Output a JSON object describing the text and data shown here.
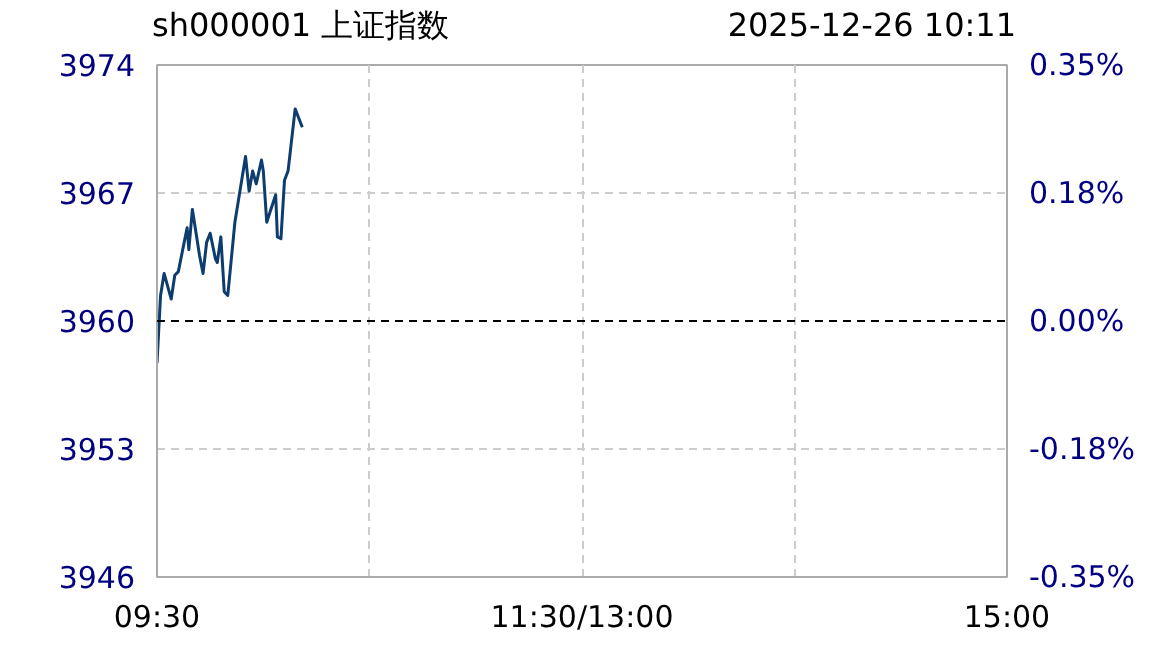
{
  "chart_data": {
    "type": "line",
    "title": "sh000001 上证指数",
    "subtitle": "2025-12-26  10:11",
    "x": [
      9.5,
      9.523,
      9.546,
      9.592,
      9.615,
      9.638,
      9.683,
      9.695,
      9.706,
      9.729,
      9.775,
      9.798,
      9.821,
      9.844,
      9.878,
      9.89,
      9.913,
      9.935,
      9.958,
      10.004,
      10.027,
      10.073,
      10.096,
      10.119,
      10.142,
      10.176,
      10.188,
      10.21,
      10.233,
      10.268,
      10.279,
      10.302,
      10.325,
      10.348,
      10.394,
      10.44
    ],
    "series": [
      {
        "color": "#0d3d6e",
        "values": [
          3957.7,
          3961.4,
          3962.6,
          3961.2,
          3962.5,
          3962.7,
          3964.6,
          3965.1,
          3963.9,
          3966.1,
          3963.6,
          3962.6,
          3964.3,
          3964.8,
          3963.4,
          3963.2,
          3964.6,
          3961.6,
          3961.4,
          3965.4,
          3966.6,
          3969.0,
          3967.1,
          3968.2,
          3967.5,
          3968.8,
          3968.2,
          3965.4,
          3966.0,
          3966.9,
          3964.6,
          3964.5,
          3967.7,
          3968.2,
          3971.6,
          3970.6
        ]
      }
    ],
    "xlim": [
      9.5,
      15
    ],
    "xticks": [
      {
        "value": 9.5,
        "label": "09:30"
      },
      {
        "value": 10.875,
        "label": null
      },
      {
        "value": 12.25,
        "label": "11:30/13:00"
      },
      {
        "value": 13.625,
        "label": null
      },
      {
        "value": 15,
        "label": "15:00"
      }
    ],
    "ylim": [
      3946,
      3974
    ],
    "yticks": [
      3946,
      3953,
      3960,
      3967,
      3974
    ],
    "y2lim": [
      -0.3535,
      0.3535
    ],
    "y2ticks": [
      {
        "value": -0.3535,
        "label": "-0.35%"
      },
      {
        "value": -0.1768,
        "label": "-0.18%"
      },
      {
        "value": 0,
        "label": "0.00%"
      },
      {
        "value": 0.1768,
        "label": "0.18%"
      },
      {
        "value": 0.3535,
        "label": "0.35%"
      }
    ],
    "ref_lines": [
      {
        "axis": "y",
        "value": 3960,
        "color": "#000000",
        "line_style": "dashed"
      }
    ],
    "grid": true,
    "line_style": "solid",
    "marker": "none"
  }
}
